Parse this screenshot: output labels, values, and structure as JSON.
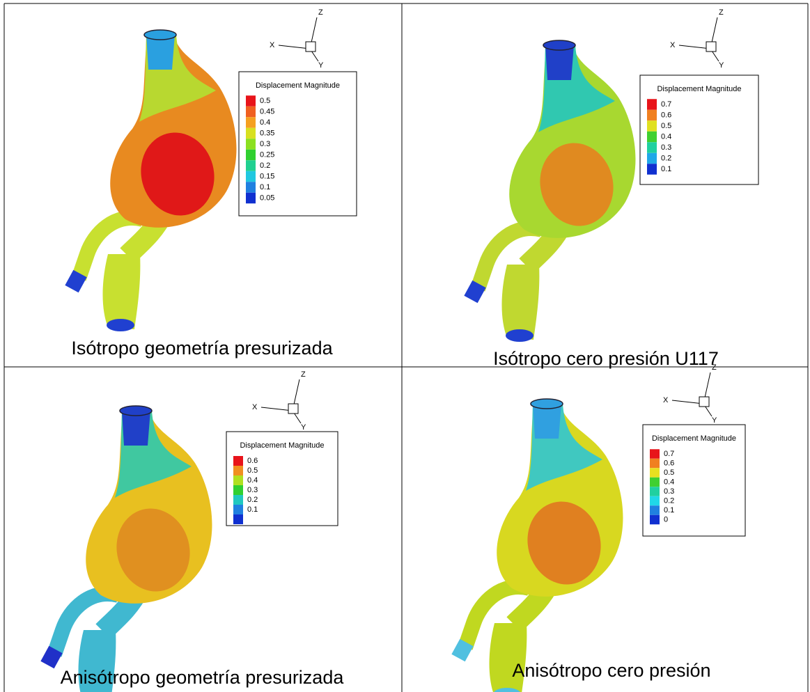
{
  "panels": [
    {
      "caption": "Isótropo geometría presurizada",
      "axes": {
        "x": "X",
        "y": "Y",
        "z": "Z"
      },
      "legend": {
        "title": "Displacement Magnitude",
        "levels": [
          {
            "label": "0.5",
            "color": "#e8141a"
          },
          {
            "label": "0.45",
            "color": "#f06020"
          },
          {
            "label": "0.4",
            "color": "#f5a020"
          },
          {
            "label": "0.35",
            "color": "#d8e020"
          },
          {
            "label": "0.3",
            "color": "#8ce020"
          },
          {
            "label": "0.25",
            "color": "#30d030"
          },
          {
            "label": "0.2",
            "color": "#20d090"
          },
          {
            "label": "0.15",
            "color": "#20c8e0"
          },
          {
            "label": "0.1",
            "color": "#2080e0"
          },
          {
            "label": "0.05",
            "color": "#1030d0"
          }
        ]
      }
    },
    {
      "caption": "Isótropo cero presión U117",
      "axes": {
        "x": "X",
        "y": "Y",
        "z": "Z"
      },
      "legend": {
        "title": "Displacement Magnitude",
        "levels": [
          {
            "label": "0.7",
            "color": "#e8141a"
          },
          {
            "label": "0.6",
            "color": "#f08020"
          },
          {
            "label": "0.5",
            "color": "#e0e020"
          },
          {
            "label": "0.4",
            "color": "#40d030"
          },
          {
            "label": "0.3",
            "color": "#20d0a0"
          },
          {
            "label": "0.2",
            "color": "#20a8e8"
          },
          {
            "label": "0.1",
            "color": "#1030d0"
          }
        ]
      }
    },
    {
      "caption": "Anisótropo geometría presurizada",
      "axes": {
        "x": "X",
        "y": "Y",
        "z": "Z"
      },
      "legend": {
        "title": "Displacement Magnitude",
        "levels": [
          {
            "label": "0.6",
            "color": "#e8141a"
          },
          {
            "label": "0.5",
            "color": "#f09020"
          },
          {
            "label": "0.4",
            "color": "#b0e020"
          },
          {
            "label": "0.3",
            "color": "#30d030"
          },
          {
            "label": "0.2",
            "color": "#20c8c0"
          },
          {
            "label": "0.1",
            "color": "#2080e0"
          },
          {
            "label": "",
            "color": "#1030d0"
          }
        ]
      }
    },
    {
      "caption": "Anisótropo cero presión",
      "axes": {
        "x": "X",
        "y": "Y",
        "z": "Z"
      },
      "legend": {
        "title": "Displacement Magnitude",
        "levels": [
          {
            "label": "0.7",
            "color": "#e8141a"
          },
          {
            "label": "0.6",
            "color": "#f08020"
          },
          {
            "label": "0.5",
            "color": "#e8e020"
          },
          {
            "label": "0.4",
            "color": "#40d030"
          },
          {
            "label": "0.3",
            "color": "#20d0a0"
          },
          {
            "label": "0.2",
            "color": "#20d8e8"
          },
          {
            "label": "0.1",
            "color": "#2080e0"
          },
          {
            "label": "0",
            "color": "#1030d0"
          }
        ]
      }
    }
  ]
}
